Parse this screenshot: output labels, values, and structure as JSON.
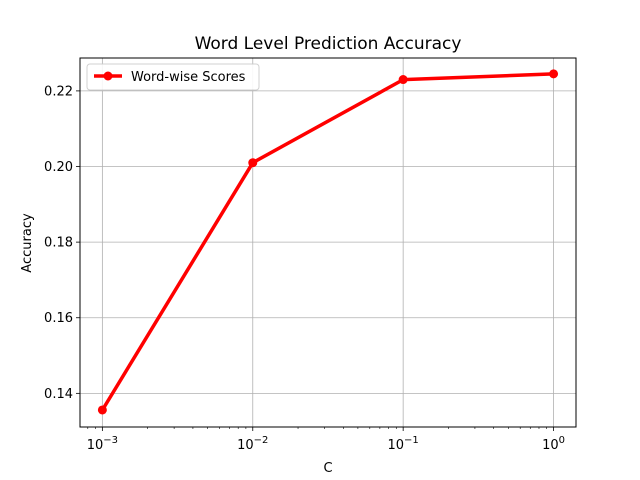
{
  "chart_data": {
    "type": "line",
    "title": "Word Level Prediction Accuracy",
    "xlabel": "C",
    "ylabel": "Accuracy",
    "xscale": "log",
    "xlim": [
      0.00071,
      1.41
    ],
    "ylim": [
      0.1311,
      0.2287
    ],
    "x_ticks": [
      {
        "value": 0.001,
        "base": "10",
        "exp": "−3"
      },
      {
        "value": 0.01,
        "base": "10",
        "exp": "−2"
      },
      {
        "value": 0.1,
        "base": "10",
        "exp": "−1"
      },
      {
        "value": 1,
        "base": "10",
        "exp": "0"
      }
    ],
    "y_ticks": [
      0.14,
      0.16,
      0.18,
      0.2,
      0.22
    ],
    "y_tick_labels": [
      "0.14",
      "0.16",
      "0.18",
      "0.20",
      "0.22"
    ],
    "grid": true,
    "legend_position": "top-left",
    "series": [
      {
        "name": "Word-wise Scores",
        "color": "#ff0000",
        "marker": "circle",
        "x": [
          0.001,
          0.01,
          0.1,
          1
        ],
        "y": [
          0.1356,
          0.201,
          0.223,
          0.2245
        ]
      }
    ]
  }
}
